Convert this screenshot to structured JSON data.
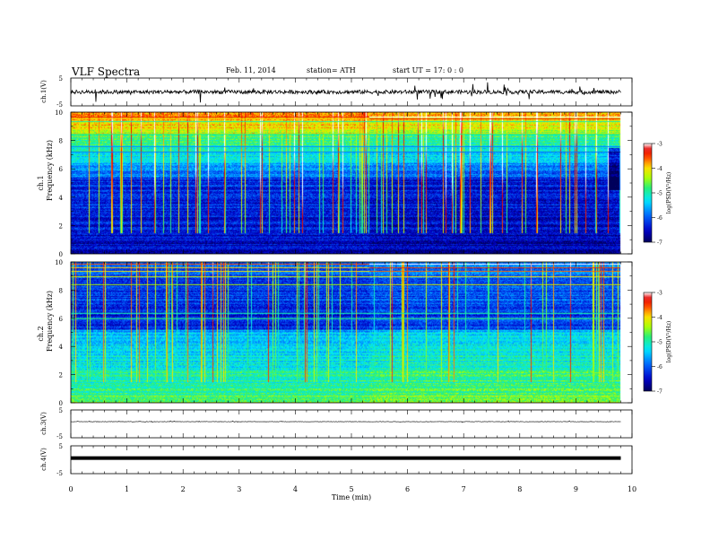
{
  "header": {
    "title": "VLF  Spectra",
    "date": "Feb. 11, 2014",
    "station": "station= ATH",
    "start": "start  UT  =    17: 0   : 0"
  },
  "chart_data": [
    {
      "type": "line",
      "name": "ch1-waveform",
      "ylabel": "ch.1(V)",
      "ylim": [
        -5,
        5
      ],
      "yticks": [
        "5",
        "-5"
      ],
      "xlim": [
        0,
        10
      ],
      "baseline": 0,
      "color": "#000000"
    },
    {
      "type": "heatmap",
      "name": "ch1-spectrogram",
      "ylabel_top": "ch.1",
      "ylabel": "Frequency  (kHz)",
      "xlim": [
        0,
        10
      ],
      "ylim": [
        0,
        10
      ],
      "data_end_min": 9.8,
      "yticks": [
        "0",
        "2",
        "4",
        "6",
        "8",
        "10"
      ],
      "colorbar": {
        "label": "log(PSD(V²/Hz)",
        "range": [
          -7,
          -3
        ],
        "ticks": [
          "-3",
          "-4",
          "-5",
          "-6",
          "-7"
        ]
      }
    },
    {
      "type": "heatmap",
      "name": "ch2-spectrogram",
      "ylabel_top": "ch.2",
      "ylabel": "Frequency  (kHz)",
      "xlim": [
        0,
        10
      ],
      "ylim": [
        0,
        10
      ],
      "data_end_min": 9.8,
      "yticks": [
        "0",
        "2",
        "4",
        "6",
        "8",
        "10"
      ],
      "colorbar": {
        "label": "log(PSD(V²/Hz)",
        "range": [
          -7,
          -3
        ],
        "ticks": [
          "-3",
          "-4",
          "-5",
          "-6",
          "-7"
        ]
      }
    },
    {
      "type": "line",
      "name": "ch3-waveform",
      "ylabel": "ch.3(V)",
      "ylim": [
        -5,
        5
      ],
      "yticks": [
        "5",
        "-5"
      ],
      "xlim": [
        0,
        10
      ],
      "baseline": 0.8
    },
    {
      "type": "line",
      "name": "ch4-waveform",
      "ylabel": "ch.4(V)",
      "ylim": [
        -5,
        5
      ],
      "yticks": [
        "5",
        "-5"
      ],
      "xlim": [
        0,
        10
      ],
      "baseline": 0.6
    }
  ],
  "xaxis": {
    "label": "Time  (min)",
    "ticks": [
      "0",
      "1",
      "2",
      "3",
      "4",
      "5",
      "6",
      "7",
      "8",
      "9",
      "10"
    ]
  }
}
